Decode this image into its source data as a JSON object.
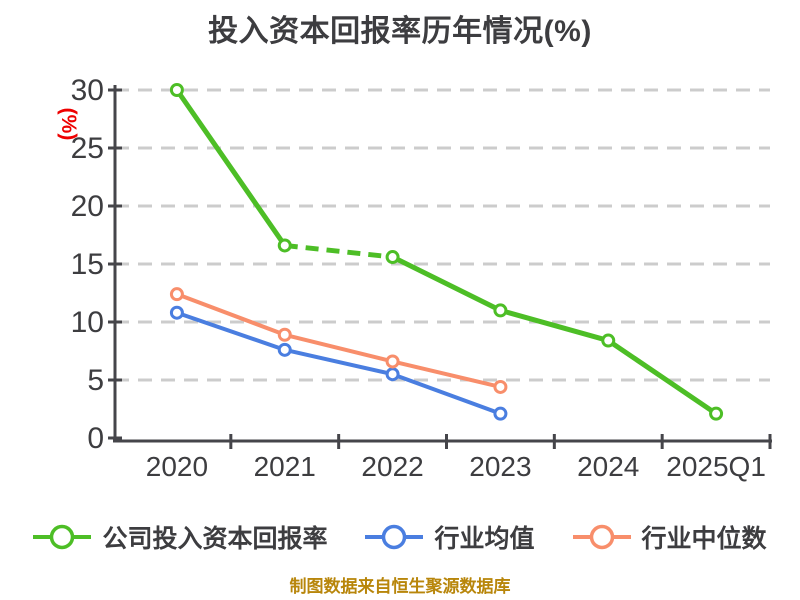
{
  "chart_data": {
    "type": "line",
    "title": "投入资本回报率历年情况(%)",
    "ylabel": "(%)",
    "footer": "制图数据来自恒生聚源数据库",
    "categories": [
      "2020",
      "2021",
      "2022",
      "2023",
      "2024",
      "2025Q1"
    ],
    "yticks": [
      0,
      5,
      10,
      15,
      20,
      25,
      30
    ],
    "ylim": [
      0,
      30
    ],
    "grid": "horizontal-dashed",
    "legend_position": "bottom",
    "series": [
      {
        "name": "公司投入资本回报率",
        "color": "#4DBE26",
        "line_width": 5,
        "values": [
          30.0,
          16.6,
          15.6,
          11.0,
          8.4,
          2.1
        ],
        "dashed_segments": [
          [
            1,
            2
          ]
        ]
      },
      {
        "name": "行业均值",
        "color": "#4A7EE0",
        "line_width": 4,
        "values": [
          10.8,
          7.6,
          5.5,
          2.1,
          null,
          null
        ],
        "dashed_segments": []
      },
      {
        "name": "行业中位数",
        "color": "#F88E6B",
        "line_width": 4,
        "values": [
          12.4,
          8.9,
          6.6,
          4.4,
          null,
          null
        ],
        "dashed_segments": []
      }
    ]
  },
  "colors": {
    "background": "#FFFFFF",
    "title": "#3D3D40",
    "axis": "#45454A",
    "tick_labels": "#3D3D40",
    "gridlines": "#CCCCCC",
    "ylabel": "#EE0000",
    "legend_labels": "#3D3D40",
    "footer": "#B8860B",
    "marker_fill": "#FFFFFF"
  }
}
